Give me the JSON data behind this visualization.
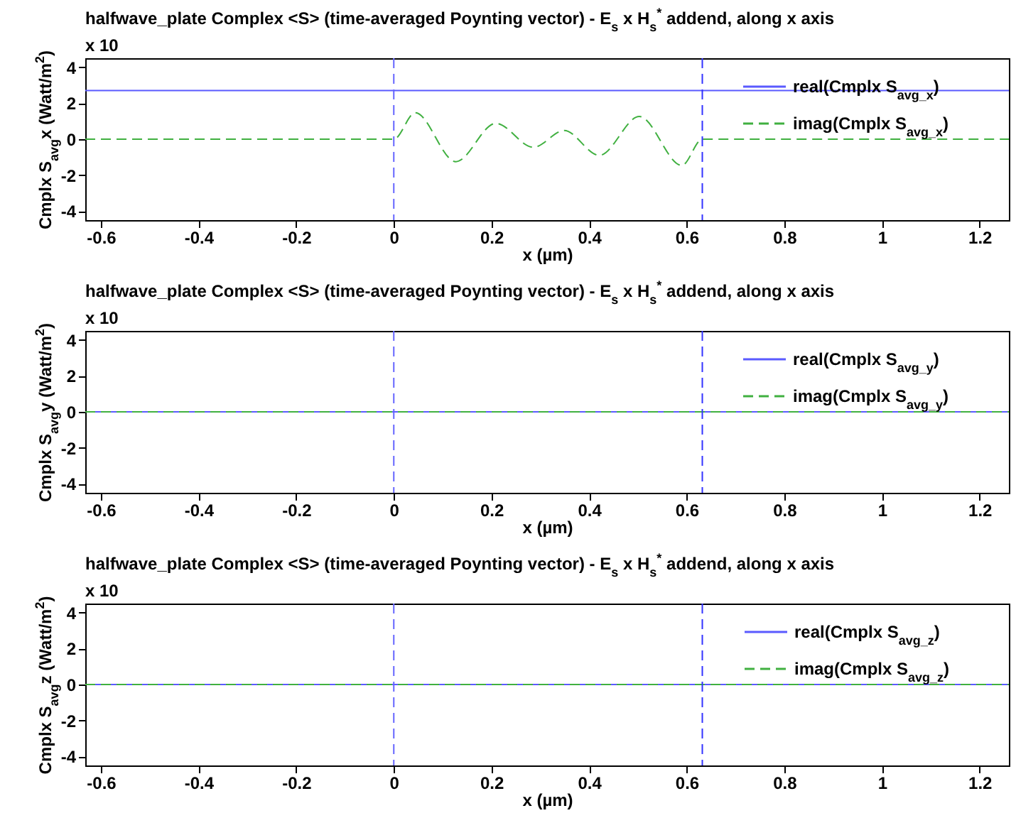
{
  "chart_data": [
    {
      "type": "line",
      "title": "halfwave_plate Complex <S> (time-averaged Poynting vector) - E$_{s}$ x H$_{s}$$^{*}$ addend, along x axis",
      "xlabel": "x (µm)",
      "ylabel": "Cmplx S$_{avg}$x (Watt/m$^{2}$)",
      "annotations": [
        "x 10"
      ],
      "xlim": [
        -0.632,
        1.26
      ],
      "ylim": [
        -4.5,
        4.5
      ],
      "xticks": [
        -0.6,
        -0.4,
        -0.2,
        0,
        0.2,
        0.4,
        0.6,
        0.8,
        1,
        1.2
      ],
      "yticks": [
        -4,
        -2,
        0,
        2,
        4
      ],
      "grid": false,
      "legend": "top right",
      "series": [
        {
          "name": "real(Cmplx S$_{avg_x}$)",
          "color": "#5a5aff",
          "line_style": "solid",
          "x": [
            -0.632,
            1.26
          ],
          "values": [
            2.7,
            2.7
          ]
        },
        {
          "name": "imag(Cmplx S$_{avg_x}$)",
          "color": "#40b040",
          "line_style": "dashed",
          "x": [
            -0.632,
            0,
            0.044,
            0.127,
            0.209,
            0.286,
            0.349,
            0.421,
            0.503,
            0.59,
            0.632,
            1.26
          ],
          "values": [
            0,
            0,
            1.47,
            -1.25,
            0.88,
            -0.45,
            0.48,
            -0.9,
            1.26,
            -1.46,
            0,
            0
          ]
        }
      ],
      "ref_lines": [
        {
          "axis": "x",
          "value": 0,
          "color": "#6666ff",
          "line_style": "dashed"
        },
        {
          "axis": "x",
          "value": 0.632,
          "color": "#3333ff",
          "line_style": "dashed"
        }
      ]
    },
    {
      "type": "line",
      "title": "halfwave_plate Complex <S> (time-averaged Poynting vector) - E$_{s}$ x H$_{s}$$^{*}$ addend, along x axis",
      "xlabel": "x (µm)",
      "ylabel": "Cmplx S$_{avg}$y (Watt/m$^{2}$)",
      "annotations": [
        "x 10"
      ],
      "xlim": [
        -0.632,
        1.26
      ],
      "ylim": [
        -4.5,
        4.5
      ],
      "xticks": [
        -0.6,
        -0.4,
        -0.2,
        0,
        0.2,
        0.4,
        0.6,
        0.8,
        1,
        1.2
      ],
      "yticks": [
        -4,
        -2,
        0,
        2,
        4
      ],
      "grid": false,
      "legend": "top right",
      "series": [
        {
          "name": "real(Cmplx S$_{avg_y}$)",
          "color": "#5a5aff",
          "line_style": "solid",
          "x": [
            -0.632,
            1.26
          ],
          "values": [
            0,
            0
          ]
        },
        {
          "name": "imag(Cmplx S$_{avg_y}$)",
          "color": "#40b040",
          "line_style": "dashed",
          "x": [
            -0.632,
            1.26
          ],
          "values": [
            0,
            0
          ]
        }
      ],
      "ref_lines": [
        {
          "axis": "x",
          "value": 0,
          "color": "#6666ff",
          "line_style": "dashed"
        },
        {
          "axis": "x",
          "value": 0.632,
          "color": "#3333ff",
          "line_style": "dashed"
        }
      ]
    },
    {
      "type": "line",
      "title": "halfwave_plate Complex <S> (time-averaged Poynting vector) - E$_{s}$ x H$_{s}$$^{*}$ addend, along x axis",
      "xlabel": "x (µm)",
      "ylabel": "Cmplx S$_{avg}$z (Watt/m$^{2}$)",
      "annotations": [
        "x 10"
      ],
      "xlim": [
        -0.632,
        1.26
      ],
      "ylim": [
        -4.5,
        4.5
      ],
      "xticks": [
        -0.6,
        -0.4,
        -0.2,
        0,
        0.2,
        0.4,
        0.6,
        0.8,
        1,
        1.2
      ],
      "yticks": [
        -4,
        -2,
        0,
        2,
        4
      ],
      "grid": false,
      "legend": "top right",
      "series": [
        {
          "name": "real(Cmplx S$_{avg_z}$)",
          "color": "#5a5aff",
          "line_style": "solid",
          "x": [
            -0.632,
            1.26
          ],
          "values": [
            0,
            0
          ]
        },
        {
          "name": "imag(Cmplx S$_{avg_z}$)",
          "color": "#40b040",
          "line_style": "dashed",
          "x": [
            -0.632,
            1.26
          ],
          "values": [
            0,
            0
          ]
        }
      ],
      "ref_lines": [
        {
          "axis": "x",
          "value": 0,
          "color": "#6666ff",
          "line_style": "dashed"
        },
        {
          "axis": "x",
          "value": 0.632,
          "color": "#3333ff",
          "line_style": "dashed"
        }
      ]
    }
  ]
}
